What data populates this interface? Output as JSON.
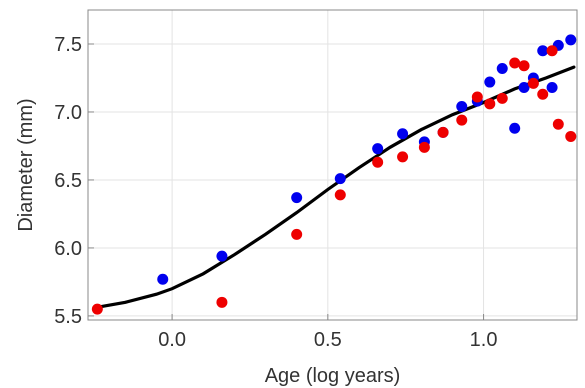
{
  "chart_data": {
    "type": "scatter",
    "xlabel": "Age (log years)",
    "ylabel": "Diameter (mm)",
    "xlim": [
      -0.27,
      1.3
    ],
    "ylim": [
      5.47,
      7.75
    ],
    "x_ticks": [
      0.0,
      0.5,
      1.0
    ],
    "y_ticks": [
      5.5,
      6.0,
      6.5,
      7.0,
      7.5
    ],
    "x_tick_labels": [
      "0.0",
      "0.5",
      "1.0"
    ],
    "y_tick_labels": [
      "5.5",
      "6.0",
      "6.5",
      "7.0",
      "7.5"
    ],
    "grid": true,
    "colors": {
      "blue_series": "#0000ee",
      "red_series": "#ee0000",
      "fit_line": "#000000"
    },
    "series": [
      {
        "color": "#0000ee",
        "points": [
          [
            -0.03,
            5.77
          ],
          [
            0.16,
            5.94
          ],
          [
            0.4,
            6.37
          ],
          [
            0.54,
            6.51
          ],
          [
            0.66,
            6.73
          ],
          [
            0.74,
            6.84
          ],
          [
            0.81,
            6.78
          ],
          [
            0.87,
            6.85
          ],
          [
            0.93,
            7.04
          ],
          [
            0.98,
            7.08
          ],
          [
            1.02,
            7.22
          ],
          [
            1.06,
            7.32
          ],
          [
            1.1,
            6.88
          ],
          [
            1.13,
            7.18
          ],
          [
            1.16,
            7.25
          ],
          [
            1.19,
            7.45
          ],
          [
            1.22,
            7.18
          ],
          [
            1.24,
            7.49
          ],
          [
            1.28,
            7.53
          ]
        ]
      },
      {
        "color": "#ee0000",
        "points": [
          [
            -0.24,
            5.55
          ],
          [
            0.16,
            5.6
          ],
          [
            0.4,
            6.1
          ],
          [
            0.54,
            6.39
          ],
          [
            0.66,
            6.63
          ],
          [
            0.74,
            6.67
          ],
          [
            0.81,
            6.74
          ],
          [
            0.87,
            6.85
          ],
          [
            0.93,
            6.94
          ],
          [
            0.98,
            7.11
          ],
          [
            1.02,
            7.06
          ],
          [
            1.06,
            7.1
          ],
          [
            1.1,
            7.36
          ],
          [
            1.13,
            7.34
          ],
          [
            1.16,
            7.21
          ],
          [
            1.19,
            7.13
          ],
          [
            1.22,
            7.45
          ],
          [
            1.24,
            6.91
          ],
          [
            1.28,
            6.82
          ]
        ]
      },
      {
        "type": "line",
        "color": "#000000",
        "points": [
          [
            -0.25,
            5.56
          ],
          [
            -0.15,
            5.6
          ],
          [
            -0.05,
            5.66
          ],
          [
            0.0,
            5.7
          ],
          [
            0.1,
            5.81
          ],
          [
            0.2,
            5.95
          ],
          [
            0.3,
            6.1
          ],
          [
            0.4,
            6.26
          ],
          [
            0.5,
            6.43
          ],
          [
            0.6,
            6.59
          ],
          [
            0.7,
            6.74
          ],
          [
            0.8,
            6.87
          ],
          [
            0.9,
            6.98
          ],
          [
            1.0,
            7.07
          ],
          [
            1.1,
            7.17
          ],
          [
            1.2,
            7.25
          ],
          [
            1.29,
            7.33
          ]
        ]
      }
    ]
  }
}
